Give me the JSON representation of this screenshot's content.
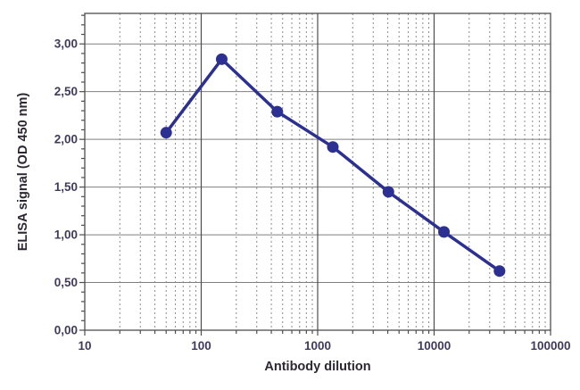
{
  "chart_data": {
    "type": "line",
    "title": "",
    "xlabel": "Antibody dilution",
    "ylabel": "ELISA signal (OD 450 nm)",
    "x_scale": "log",
    "x_range": [
      10,
      100000
    ],
    "y_range": [
      0,
      3.32
    ],
    "y_major_step": 0.5,
    "y_minor_step": 0.1,
    "x_ticks": [
      {
        "value": 10,
        "label": "10"
      },
      {
        "value": 100,
        "label": "100"
      },
      {
        "value": 1000,
        "label": "1000"
      },
      {
        "value": 10000,
        "label": "10000"
      },
      {
        "value": 100000,
        "label": "100000"
      }
    ],
    "y_ticks": [
      {
        "value": 0.0,
        "label": "0,00"
      },
      {
        "value": 0.5,
        "label": "0,50"
      },
      {
        "value": 1.0,
        "label": "1,00"
      },
      {
        "value": 1.5,
        "label": "1,50"
      },
      {
        "value": 2.0,
        "label": "2,00"
      },
      {
        "value": 2.5,
        "label": "2,50"
      },
      {
        "value": 3.0,
        "label": "3,00"
      }
    ],
    "grid": {
      "horizontal_major": true,
      "vertical_minor_dashed": true,
      "vertical_decade_solid": [
        100,
        1000,
        10000
      ],
      "legend": "none"
    },
    "series": [
      {
        "name": "ELISA signal",
        "marker": "circle",
        "points": [
          [
            50,
            2.07
          ],
          [
            150,
            2.84
          ],
          [
            450,
            2.29
          ],
          [
            1350,
            1.92
          ],
          [
            4050,
            1.45
          ],
          [
            12150,
            1.03
          ],
          [
            36450,
            0.62
          ]
        ]
      }
    ],
    "colors": {
      "line": "#2b3092",
      "marker": "#2b3092",
      "frame": "#4d4d4d",
      "grid_major": "#7f7f7f",
      "grid_minor": "#8c8c8c",
      "tick_label": "#413a5c",
      "axis_title": "#2e2733",
      "background": "#ffffff"
    }
  }
}
